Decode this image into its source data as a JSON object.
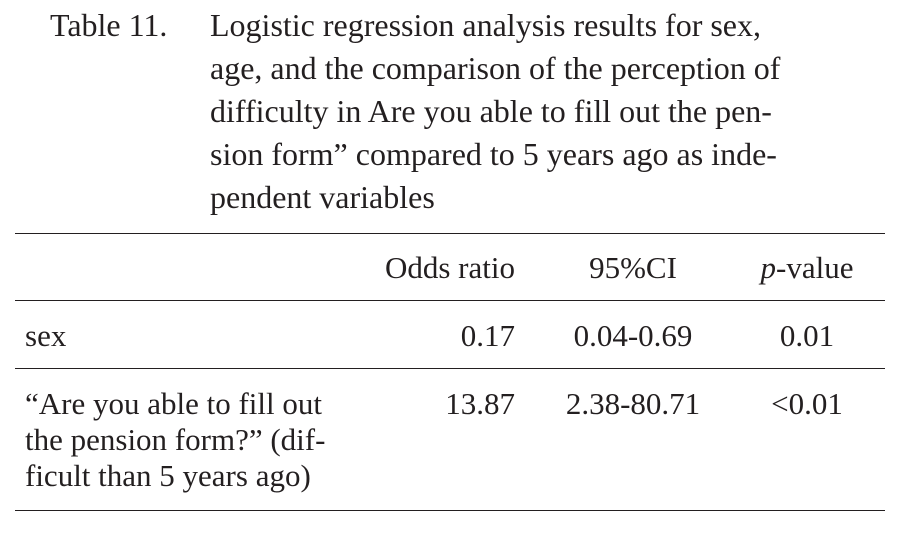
{
  "caption": {
    "label": "Table 11.",
    "lines": [
      "Logistic regression analysis results for sex,",
      "age, and the comparison of the perception of",
      "difficulty in Are you able to fill out the pen-",
      "sion form” compared to 5 years ago as inde-",
      "pendent variables"
    ]
  },
  "table": {
    "headers": {
      "variable": "",
      "odds_ratio": "Odds ratio",
      "ci": "95%CI",
      "p_prefix": "p",
      "p_suffix": "-value"
    },
    "rows": [
      {
        "label_lines": [
          "sex"
        ],
        "odds_ratio": "0.17",
        "ci": "0.04-0.69",
        "p_value": "0.01"
      },
      {
        "label_lines": [
          "“Are you able to fill out",
          "the pension form?” (dif-",
          "ficult than 5 years ago)"
        ],
        "odds_ratio": "13.87",
        "ci": "2.38-80.71",
        "p_value": "<0.01"
      }
    ]
  }
}
